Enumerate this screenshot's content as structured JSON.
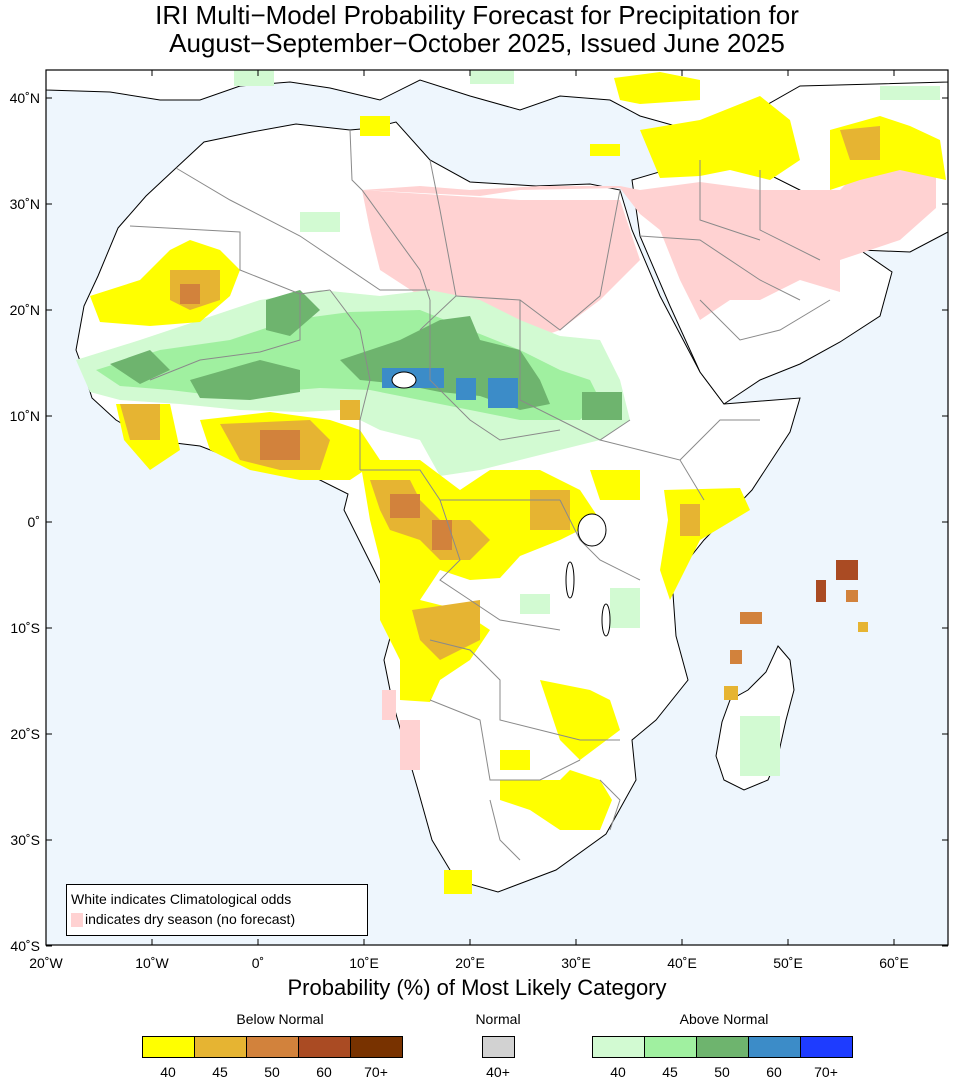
{
  "title_line1": "IRI Multi−Model Probability Forecast for Precipitation for",
  "title_line2": "August−September−October 2025, Issued June 2025",
  "axes": {
    "lat_labels": [
      "40˚N",
      "30˚N",
      "20˚N",
      "10˚N",
      "0˚",
      "10˚S",
      "20˚S",
      "30˚S",
      "40˚S"
    ],
    "lon_labels": [
      "20˚W",
      "10˚W",
      "0˚",
      "10˚E",
      "20˚E",
      "30˚E",
      "40˚E",
      "50˚E",
      "60˚E"
    ]
  },
  "map_legend": {
    "line1": "White indicates Climatological odds",
    "line2": "indicates dry season (no forecast)"
  },
  "subtitle": "Probability (%) of Most Likely Category",
  "colorbar": {
    "below_normal": {
      "title": "Below Normal",
      "labels": [
        "40",
        "45",
        "50",
        "60",
        "70+"
      ],
      "colors": [
        "#ffff00",
        "#e6b432",
        "#d2823c",
        "#aa4b23",
        "#783200"
      ]
    },
    "normal": {
      "title": "Normal",
      "labels": [
        "40+"
      ],
      "colors": [
        "#d2d2d2"
      ]
    },
    "above_normal": {
      "title": "Above Normal",
      "labels": [
        "40",
        "45",
        "50",
        "60",
        "70+"
      ],
      "colors": [
        "#d2fad2",
        "#a0f0a0",
        "#6eb46e",
        "#3c8cc8",
        "#1e3cff"
      ]
    }
  },
  "colors": {
    "ocean": "#eef6fd",
    "land": "#ffffff",
    "dry_season": "#ffd2d2"
  }
}
